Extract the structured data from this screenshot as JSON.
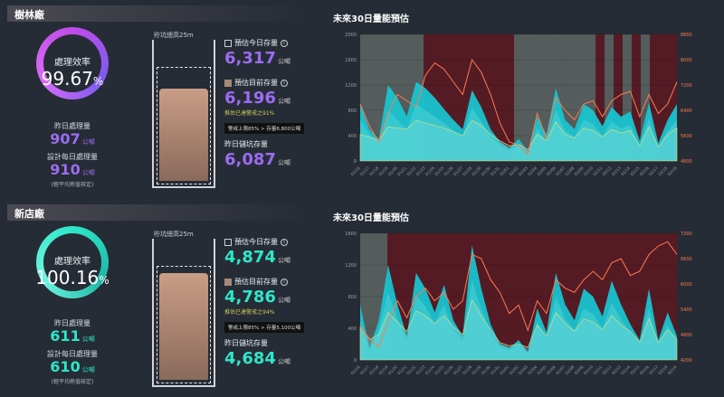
{
  "colors": {
    "accent1": "#9b6cf2",
    "accent2": "#2ee6c8",
    "area": "#17c0cc",
    "line": "#ff7a4d",
    "bandRed": "#5a1a24",
    "bandGray": "#5a6260"
  },
  "plants": [
    {
      "name": "樹林廠",
      "efficiency_label": "處理效率",
      "efficiency_value": "99.67",
      "efficiency_unit": "%",
      "yesterday_label": "昨日處理量",
      "yesterday_value": "907",
      "design_label": "設計每日處理量",
      "design_value": "910",
      "unit": "公噸",
      "design_note": "(輕平均熱值核定)",
      "tank_title": "貯坑總高25m",
      "tank_level": 0.72,
      "today_label": "預估今日存量",
      "today_value": "6,317",
      "now_label": "預估目前存量",
      "now_value": "6,196",
      "warn_text": "推估已達警戒之91%",
      "tip_text": "警戒上限85% > 存量6,800公噸",
      "yest_pit_label": "昨日儲坑存量",
      "yest_pit_value": "6,087",
      "accent": "#9b6cf2"
    },
    {
      "name": "新店廠",
      "efficiency_label": "處理效率",
      "efficiency_value": "100.16",
      "efficiency_unit": "%",
      "yesterday_label": "昨日處理量",
      "yesterday_value": "611",
      "design_label": "設計每日處理量",
      "design_value": "610",
      "unit": "公噸",
      "design_note": "(輕平均熱值核定)",
      "tank_title": "貯坑總高25m",
      "tank_level": 0.83,
      "today_label": "預估今日存量",
      "today_value": "4,874",
      "now_label": "預估目前存量",
      "now_value": "4,786",
      "warn_text": "推估已達警戒之94%",
      "tip_text": "警戒上限85% > 存量5,100公噸",
      "yest_pit_label": "昨日儲坑存量",
      "yest_pit_value": "4,684",
      "accent": "#2ee6c8"
    }
  ],
  "chart_data": [
    {
      "type": "area",
      "title": "未來30日量能預估",
      "categories": [
        "01/16",
        "01/17",
        "01/18",
        "01/19",
        "01/20",
        "01/21",
        "01/22",
        "01/23",
        "01/24",
        "01/25",
        "01/26",
        "01/27",
        "01/28",
        "01/29",
        "01/30",
        "01/31",
        "02/01",
        "02/02",
        "02/03",
        "02/04",
        "02/05",
        "02/06",
        "02/07",
        "02/08",
        "02/09",
        "02/10",
        "02/11",
        "02/12",
        "02/13",
        "02/14",
        "02/15",
        "02/16",
        "02/17",
        "02/18",
        "02/19"
      ],
      "ylim": [
        0,
        2000
      ],
      "yticks": [
        0,
        400,
        800,
        1200,
        1600,
        2000
      ],
      "y2lim": [
        4800,
        8800
      ],
      "y2ticks": [
        4800,
        5600,
        6400,
        7200,
        8000,
        8800
      ],
      "series": [
        {
          "axis": "left",
          "values": [
            900,
            500,
            350,
            1200,
            1000,
            700,
            1250,
            1150,
            1000,
            820,
            650,
            500,
            1120,
            850,
            500,
            300,
            200,
            350,
            150,
            700,
            420,
            1150,
            650,
            500,
            900,
            800,
            550,
            850,
            700,
            780,
            320,
            920,
            280,
            650,
            900
          ]
        },
        {
          "axis": "left",
          "values": [
            650,
            420,
            320,
            800,
            650,
            500,
            900,
            800,
            700,
            600,
            480,
            380,
            850,
            620,
            380,
            240,
            160,
            260,
            120,
            520,
            300,
            820,
            480,
            380,
            650,
            580,
            400,
            620,
            520,
            560,
            240,
            680,
            220,
            480,
            640
          ]
        },
        {
          "axis": "left",
          "values": [
            420,
            380,
            320,
            540,
            520,
            500,
            640,
            600,
            560,
            520,
            460,
            400,
            640,
            560,
            420,
            320,
            240,
            260,
            180,
            420,
            320,
            620,
            420,
            360,
            520,
            480,
            380,
            500,
            440,
            480,
            240,
            540,
            220,
            420,
            520
          ]
        },
        {
          "axis": "right",
          "values": [
            6600,
            5900,
            5400,
            6300,
            6900,
            6700,
            6500,
            7500,
            7900,
            7700,
            7300,
            6900,
            8000,
            7600,
            6900,
            6000,
            5400,
            5300,
            5000,
            6300,
            5500,
            6800,
            6400,
            6100,
            6600,
            6700,
            6200,
            6700,
            6900,
            7000,
            6200,
            6900,
            6300,
            6600,
            7300
          ]
        }
      ],
      "bands": [
        "gray",
        "gray",
        "gray",
        "gray",
        "gray",
        "gray",
        "gray",
        "red",
        "red",
        "red",
        "red",
        "red",
        "red",
        "red",
        "red",
        "red",
        "red",
        "gray",
        "gray",
        "gray",
        "gray",
        "gray",
        "gray",
        "gray",
        "gray",
        "gray",
        "red",
        "gray",
        "red",
        "gray",
        "red",
        "gray",
        "red",
        "red",
        "red"
      ]
    },
    {
      "type": "area",
      "title": "未來30日量能預估",
      "categories": [
        "01/16",
        "01/17",
        "01/18",
        "01/19",
        "01/20",
        "01/21",
        "01/22",
        "01/23",
        "01/24",
        "01/25",
        "01/26",
        "01/27",
        "01/28",
        "01/29",
        "01/30",
        "01/31",
        "02/01",
        "02/02",
        "02/03",
        "02/04",
        "02/05",
        "02/06",
        "02/07",
        "02/08",
        "02/09",
        "02/10",
        "02/11",
        "02/12",
        "02/13",
        "02/14",
        "02/15",
        "02/16",
        "02/17",
        "02/18",
        "02/19"
      ],
      "ylim": [
        0,
        1600
      ],
      "yticks": [
        0,
        400,
        800,
        1200,
        1600
      ],
      "y2lim": [
        4200,
        7200
      ],
      "y2ticks": [
        4200,
        4800,
        5400,
        6000,
        6600,
        7200
      ],
      "series": [
        {
          "axis": "left",
          "values": [
            700,
            150,
            500,
            1200,
            700,
            300,
            1100,
            900,
            600,
            950,
            500,
            300,
            1450,
            900,
            450,
            200,
            150,
            250,
            100,
            650,
            350,
            1100,
            700,
            500,
            900,
            800,
            550,
            1000,
            700,
            450,
            250,
            900,
            250,
            600,
            300
          ]
        },
        {
          "axis": "left",
          "values": [
            500,
            120,
            380,
            850,
            520,
            240,
            820,
            680,
            460,
            700,
            380,
            240,
            1000,
            650,
            340,
            160,
            120,
            200,
            80,
            480,
            260,
            800,
            520,
            380,
            650,
            580,
            400,
            720,
            520,
            340,
            200,
            650,
            200,
            440,
            240
          ]
        },
        {
          "axis": "left",
          "values": [
            420,
            260,
            320,
            600,
            480,
            360,
            620,
            560,
            460,
            560,
            420,
            320,
            760,
            560,
            380,
            220,
            180,
            200,
            160,
            440,
            300,
            600,
            460,
            360,
            520,
            480,
            380,
            560,
            440,
            360,
            220,
            520,
            220,
            380,
            260
          ]
        },
        {
          "axis": "right",
          "values": [
            5000,
            4700,
            4500,
            5100,
            5600,
            5200,
            5700,
            5900,
            5600,
            5800,
            5400,
            5600,
            6700,
            6600,
            6100,
            5800,
            5300,
            5500,
            4900,
            5600,
            5300,
            6100,
            5900,
            5800,
            6100,
            6300,
            6100,
            6500,
            6600,
            6200,
            6300,
            6700,
            6900,
            7000,
            6700
          ]
        }
      ],
      "bands": [
        "gray",
        "gray",
        "gray",
        "red",
        "red",
        "red",
        "red",
        "red",
        "red",
        "red",
        "red",
        "red",
        "red",
        "red",
        "red",
        "red",
        "red",
        "red",
        "red",
        "red",
        "red",
        "red",
        "red",
        "red",
        "red",
        "red",
        "red",
        "red",
        "red",
        "red",
        "red",
        "red",
        "red",
        "red",
        "red"
      ]
    }
  ]
}
